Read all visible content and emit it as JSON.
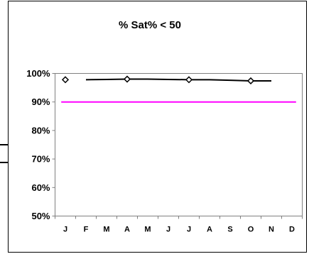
{
  "chart_data": {
    "type": "line",
    "title": "% Sat% < 50",
    "categories": [
      "J",
      "F",
      "M",
      "A",
      "M",
      "J",
      "J",
      "A",
      "S",
      "O",
      "N",
      "D"
    ],
    "y_tick_labels": [
      "100%",
      "90%",
      "80%",
      "70%",
      "60%",
      "50%"
    ],
    "ylim": [
      50,
      100
    ],
    "y_tick_values": [
      100,
      90,
      80,
      70,
      60,
      50
    ],
    "grid": false,
    "legend": "none",
    "series": [
      {
        "values": [
          97.8,
          97.8,
          97.9,
          98.0,
          98.0,
          97.9,
          97.8,
          97.8,
          97.6,
          97.4,
          97.4,
          null
        ],
        "markers_at": [
          0,
          3,
          6,
          9
        ],
        "color": "#000000",
        "marker": "diamond"
      },
      {
        "values": [
          90,
          90,
          90,
          90,
          90,
          90,
          90,
          90,
          90,
          90,
          90,
          90
        ],
        "color": "#ff00ff",
        "marker": "none"
      }
    ],
    "plot_background": "#ffffff",
    "frame_color": "#808080"
  }
}
